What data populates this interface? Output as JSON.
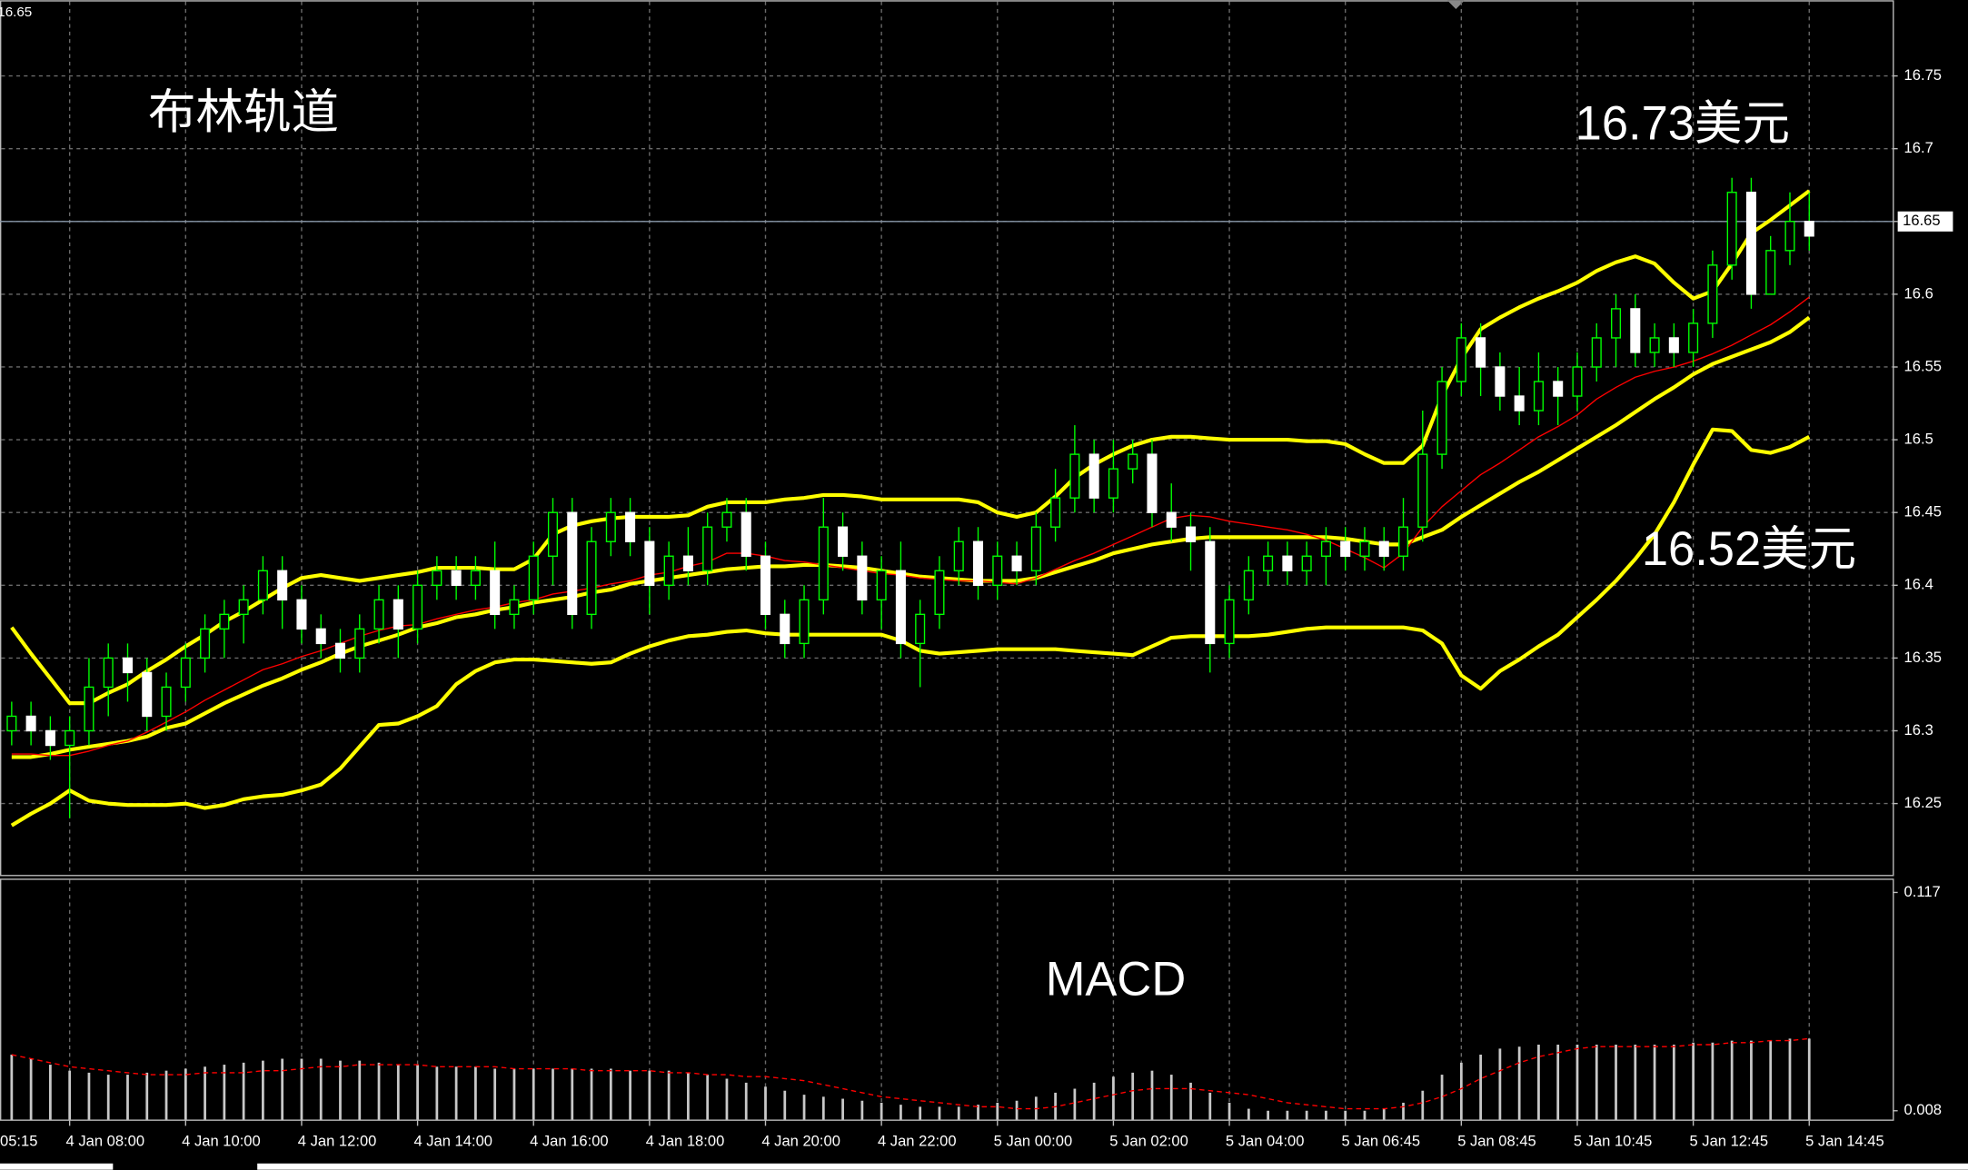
{
  "chart_data": [
    {
      "type": "candlestick",
      "title": "布林轨道",
      "last_price": 16.65,
      "annotations": [
        {
          "text": "16.73美元"
        },
        {
          "text": "16.52美元"
        }
      ],
      "ylim": [
        16.201,
        16.802
      ],
      "yticks": [
        16.25,
        16.3,
        16.35,
        16.4,
        16.45,
        16.5,
        16.55,
        16.6,
        16.65,
        16.7,
        16.75
      ],
      "grid": true,
      "up_color": "#000000",
      "down_color": "#ffffff",
      "wick_color": "#00ff00",
      "open": [
        16.3,
        16.31,
        16.3,
        16.29,
        16.3,
        16.33,
        16.35,
        16.34,
        16.31,
        16.33,
        16.35,
        16.37,
        16.38,
        16.39,
        16.41,
        16.39,
        16.37,
        16.36,
        16.35,
        16.37,
        16.39,
        16.37,
        16.4,
        16.41,
        16.4,
        16.41,
        16.38,
        16.39,
        16.42,
        16.45,
        16.38,
        16.43,
        16.45,
        16.43,
        16.4,
        16.42,
        16.41,
        16.44,
        16.45,
        16.42,
        16.38,
        16.36,
        16.39,
        16.44,
        16.42,
        16.39,
        16.41,
        16.36,
        16.38,
        16.41,
        16.43,
        16.4,
        16.42,
        16.41,
        16.44,
        16.46,
        16.49,
        16.46,
        16.48,
        16.49,
        16.45,
        16.44,
        16.43,
        16.36,
        16.39,
        16.41,
        16.42,
        16.41,
        16.42,
        16.43,
        16.42,
        16.43,
        16.42,
        16.44,
        16.49,
        16.54,
        16.57,
        16.55,
        16.53,
        16.52,
        16.54,
        16.53,
        16.55,
        16.57,
        16.59,
        16.56,
        16.57,
        16.56,
        16.58,
        16.62,
        16.67,
        16.6,
        16.63,
        16.65
      ],
      "high": [
        16.32,
        16.32,
        16.31,
        16.31,
        16.35,
        16.36,
        16.36,
        16.35,
        16.34,
        16.36,
        16.38,
        16.39,
        16.4,
        16.42,
        16.42,
        16.4,
        16.38,
        16.37,
        16.38,
        16.4,
        16.4,
        16.41,
        16.42,
        16.42,
        16.42,
        16.43,
        16.4,
        16.43,
        16.46,
        16.46,
        16.44,
        16.46,
        16.46,
        16.44,
        16.43,
        16.44,
        16.45,
        16.46,
        16.46,
        16.43,
        16.39,
        16.4,
        16.46,
        16.45,
        16.43,
        16.42,
        16.43,
        16.39,
        16.42,
        16.44,
        16.44,
        16.43,
        16.43,
        16.45,
        16.48,
        16.51,
        16.5,
        16.5,
        16.5,
        16.5,
        16.47,
        16.45,
        16.44,
        16.4,
        16.42,
        16.43,
        16.43,
        16.43,
        16.44,
        16.44,
        16.44,
        16.44,
        16.46,
        16.52,
        16.55,
        16.58,
        16.58,
        16.56,
        16.55,
        16.56,
        16.55,
        16.56,
        16.58,
        16.6,
        16.6,
        16.58,
        16.58,
        16.59,
        16.63,
        16.68,
        16.68,
        16.64,
        16.67,
        16.67
      ],
      "low": [
        16.29,
        16.29,
        16.28,
        16.24,
        16.29,
        16.31,
        16.32,
        16.3,
        16.3,
        16.32,
        16.34,
        16.35,
        16.36,
        16.38,
        16.37,
        16.36,
        16.35,
        16.34,
        16.34,
        16.36,
        16.35,
        16.36,
        16.39,
        16.39,
        16.39,
        16.37,
        16.37,
        16.38,
        16.4,
        16.37,
        16.37,
        16.42,
        16.42,
        16.38,
        16.39,
        16.4,
        16.4,
        16.43,
        16.41,
        16.37,
        16.35,
        16.35,
        16.38,
        16.41,
        16.38,
        16.37,
        16.35,
        16.33,
        16.37,
        16.4,
        16.39,
        16.39,
        16.4,
        16.4,
        16.43,
        16.45,
        16.45,
        16.45,
        16.47,
        16.44,
        16.43,
        16.41,
        16.34,
        16.35,
        16.38,
        16.4,
        16.4,
        16.4,
        16.4,
        16.41,
        16.41,
        16.41,
        16.41,
        16.43,
        16.48,
        16.53,
        16.53,
        16.52,
        16.51,
        16.51,
        16.51,
        16.52,
        16.54,
        16.55,
        16.55,
        16.55,
        16.55,
        16.55,
        16.57,
        16.61,
        16.59,
        16.6,
        16.62,
        16.63
      ],
      "close": [
        16.31,
        16.3,
        16.29,
        16.3,
        16.33,
        16.35,
        16.34,
        16.31,
        16.33,
        16.35,
        16.37,
        16.38,
        16.39,
        16.41,
        16.39,
        16.37,
        16.36,
        16.35,
        16.37,
        16.39,
        16.37,
        16.4,
        16.41,
        16.4,
        16.41,
        16.38,
        16.39,
        16.42,
        16.45,
        16.38,
        16.43,
        16.45,
        16.43,
        16.4,
        16.42,
        16.41,
        16.44,
        16.45,
        16.42,
        16.38,
        16.36,
        16.39,
        16.44,
        16.42,
        16.39,
        16.41,
        16.36,
        16.38,
        16.41,
        16.43,
        16.4,
        16.42,
        16.41,
        16.44,
        16.46,
        16.49,
        16.46,
        16.48,
        16.49,
        16.45,
        16.44,
        16.43,
        16.36,
        16.39,
        16.41,
        16.42,
        16.41,
        16.42,
        16.43,
        16.42,
        16.43,
        16.42,
        16.44,
        16.49,
        16.54,
        16.57,
        16.55,
        16.53,
        16.52,
        16.54,
        16.53,
        16.55,
        16.57,
        16.59,
        16.56,
        16.57,
        16.56,
        16.58,
        16.62,
        16.67,
        16.6,
        16.63,
        16.65,
        16.64
      ],
      "series": [
        {
          "color": "#ffff00",
          "width": 3,
          "values": [
            16.371,
            16.353,
            16.336,
            16.319,
            16.319,
            16.326,
            16.332,
            16.341,
            16.349,
            16.358,
            16.366,
            16.375,
            16.382,
            16.39,
            16.398,
            16.405,
            16.407,
            16.405,
            16.403,
            16.405,
            16.407,
            16.409,
            16.412,
            16.412,
            16.412,
            16.411,
            16.411,
            16.418,
            16.435,
            16.441,
            16.444,
            16.446,
            16.447,
            16.447,
            16.447,
            16.448,
            16.454,
            16.457,
            16.457,
            16.457,
            16.459,
            16.46,
            16.462,
            16.462,
            16.461,
            16.459,
            16.459,
            16.459,
            16.459,
            16.459,
            16.457,
            16.45,
            16.447,
            16.45,
            16.461,
            16.474,
            16.483,
            16.49,
            16.496,
            16.5,
            16.502,
            16.502,
            16.501,
            16.5,
            16.5,
            16.5,
            16.5,
            16.499,
            16.499,
            16.497,
            16.49,
            16.484,
            16.484,
            16.496,
            16.53,
            16.556,
            16.576,
            16.584,
            16.591,
            16.597,
            16.602,
            16.608,
            16.616,
            16.622,
            16.626,
            16.621,
            16.608,
            16.597,
            16.602,
            16.621,
            16.642,
            16.651,
            16.661,
            16.671
          ]
        },
        {
          "color": "#ffff00",
          "width": 3,
          "values": [
            16.282,
            16.282,
            16.284,
            16.287,
            16.289,
            16.291,
            16.293,
            16.296,
            16.302,
            16.305,
            16.312,
            16.319,
            16.325,
            16.331,
            16.336,
            16.342,
            16.347,
            16.353,
            16.358,
            16.362,
            16.366,
            16.371,
            16.374,
            16.378,
            16.38,
            16.383,
            16.385,
            16.388,
            16.39,
            16.392,
            16.395,
            16.397,
            16.401,
            16.403,
            16.405,
            16.407,
            16.409,
            16.411,
            16.412,
            16.413,
            16.413,
            16.414,
            16.414,
            16.413,
            16.412,
            16.41,
            16.408,
            16.406,
            16.405,
            16.404,
            16.403,
            16.403,
            16.403,
            16.405,
            16.409,
            16.413,
            16.417,
            16.422,
            16.425,
            16.428,
            16.43,
            16.432,
            16.433,
            16.433,
            16.433,
            16.433,
            16.433,
            16.433,
            16.433,
            16.432,
            16.43,
            16.428,
            16.428,
            16.433,
            16.438,
            16.447,
            16.455,
            16.463,
            16.471,
            16.478,
            16.486,
            16.494,
            16.502,
            16.51,
            16.519,
            16.528,
            16.536,
            16.545,
            16.552,
            16.557,
            16.562,
            16.567,
            16.574,
            16.584
          ]
        },
        {
          "color": "#ffff00",
          "width": 3,
          "values": [
            16.235,
            16.243,
            16.25,
            16.259,
            16.252,
            16.25,
            16.249,
            16.249,
            16.249,
            16.25,
            16.247,
            16.249,
            16.253,
            16.255,
            16.256,
            16.259,
            16.263,
            16.274,
            16.289,
            16.304,
            16.305,
            16.31,
            16.317,
            16.332,
            16.341,
            16.347,
            16.349,
            16.349,
            16.348,
            16.347,
            16.346,
            16.347,
            16.353,
            16.358,
            16.362,
            16.365,
            16.366,
            16.368,
            16.369,
            16.367,
            16.366,
            16.366,
            16.366,
            16.366,
            16.366,
            16.366,
            16.362,
            16.355,
            16.353,
            16.354,
            16.355,
            16.356,
            16.356,
            16.356,
            16.356,
            16.355,
            16.354,
            16.353,
            16.352,
            16.358,
            16.364,
            16.365,
            16.365,
            16.365,
            16.365,
            16.366,
            16.368,
            16.37,
            16.371,
            16.371,
            16.371,
            16.371,
            16.371,
            16.369,
            16.36,
            16.338,
            16.329,
            16.341,
            16.349,
            16.358,
            16.366,
            16.378,
            16.39,
            16.403,
            16.418,
            16.435,
            16.457,
            16.483,
            16.507,
            16.506,
            16.493,
            16.491,
            16.495,
            16.502
          ]
        },
        {
          "color": "#ff0000",
          "width": 1,
          "values": [
            16.284,
            16.284,
            16.283,
            16.283,
            16.286,
            16.29,
            16.293,
            16.299,
            16.306,
            16.313,
            16.321,
            16.328,
            16.335,
            16.342,
            16.346,
            16.351,
            16.355,
            16.36,
            16.365,
            16.369,
            16.372,
            16.373,
            16.377,
            16.38,
            16.383,
            16.385,
            16.388,
            16.39,
            16.394,
            16.396,
            16.398,
            16.401,
            16.403,
            16.407,
            16.409,
            16.413,
            16.416,
            16.422,
            16.422,
            16.42,
            16.417,
            16.416,
            16.414,
            16.412,
            16.41,
            16.408,
            16.407,
            16.405,
            16.404,
            16.403,
            16.403,
            16.402,
            16.401,
            16.405,
            16.411,
            16.417,
            16.422,
            16.428,
            16.434,
            16.44,
            16.446,
            16.448,
            16.447,
            16.444,
            16.442,
            16.44,
            16.438,
            16.435,
            16.431,
            16.425,
            16.419,
            16.412,
            16.422,
            16.44,
            16.454,
            16.465,
            16.476,
            16.484,
            16.493,
            16.502,
            16.509,
            16.517,
            16.528,
            16.536,
            16.543,
            16.547,
            16.55,
            16.554,
            16.559,
            16.565,
            16.572,
            16.579,
            16.588,
            16.598
          ]
        }
      ]
    },
    {
      "type": "bar",
      "title": "MACD",
      "ylim": [
        0.0036,
        0.1239
      ],
      "yticks": [
        0.117,
        0.008
      ],
      "grid": true,
      "left_edge_label": "05:15",
      "categories": [
        null,
        null,
        null,
        "4 Jan 08:00",
        null,
        null,
        null,
        null,
        null,
        "4 Jan 10:00",
        null,
        null,
        null,
        null,
        null,
        "4 Jan 12:00",
        null,
        null,
        null,
        null,
        null,
        "4 Jan 14:00",
        null,
        null,
        null,
        null,
        null,
        "4 Jan 16:00",
        null,
        null,
        null,
        null,
        null,
        "4 Jan 18:00",
        null,
        null,
        null,
        null,
        null,
        "4 Jan 20:00",
        null,
        null,
        null,
        null,
        null,
        "4 Jan 22:00",
        null,
        null,
        null,
        null,
        null,
        "5 Jan 00:00",
        null,
        null,
        null,
        null,
        null,
        "5 Jan 02:00",
        null,
        null,
        null,
        null,
        null,
        "5 Jan 04:00",
        null,
        null,
        null,
        null,
        null,
        "5 Jan 06:45",
        null,
        null,
        null,
        null,
        null,
        "5 Jan 08:45",
        null,
        null,
        null,
        null,
        null,
        "5 Jan 10:45",
        null,
        null,
        null,
        null,
        null,
        "5 Jan 12:45",
        null,
        null,
        null,
        null,
        null,
        "5 Jan 14:45"
      ],
      "series": [
        {
          "style": "histogram",
          "color": "#c8c8c8",
          "values": [
            0.036,
            0.034,
            0.031,
            0.028,
            0.027,
            0.026,
            0.026,
            0.027,
            0.028,
            0.029,
            0.03,
            0.031,
            0.032,
            0.033,
            0.034,
            0.034,
            0.034,
            0.033,
            0.033,
            0.032,
            0.031,
            0.031,
            0.03,
            0.03,
            0.03,
            0.029,
            0.029,
            0.029,
            0.029,
            0.029,
            0.029,
            0.029,
            0.028,
            0.028,
            0.028,
            0.027,
            0.026,
            0.024,
            0.022,
            0.02,
            0.018,
            0.016,
            0.015,
            0.014,
            0.013,
            0.012,
            0.011,
            0.01,
            0.01,
            0.01,
            0.011,
            0.012,
            0.013,
            0.015,
            0.017,
            0.019,
            0.022,
            0.025,
            0.027,
            0.028,
            0.026,
            0.022,
            0.017,
            0.012,
            0.009,
            0.008,
            0.008,
            0.008,
            0.008,
            0.008,
            0.008,
            0.009,
            0.012,
            0.018,
            0.026,
            0.032,
            0.036,
            0.039,
            0.04,
            0.041,
            0.041,
            0.041,
            0.041,
            0.041,
            0.041,
            0.041,
            0.041,
            0.042,
            0.042,
            0.043,
            0.043,
            0.043,
            0.044,
            0.044
          ]
        },
        {
          "style": "dashed-line",
          "color": "#ff0000",
          "values": [
            0.036,
            0.034,
            0.032,
            0.03,
            0.029,
            0.028,
            0.027,
            0.026,
            0.026,
            0.026,
            0.027,
            0.027,
            0.027,
            0.028,
            0.028,
            0.029,
            0.03,
            0.03,
            0.031,
            0.031,
            0.031,
            0.031,
            0.03,
            0.03,
            0.03,
            0.03,
            0.029,
            0.029,
            0.029,
            0.029,
            0.028,
            0.028,
            0.028,
            0.028,
            0.027,
            0.027,
            0.026,
            0.026,
            0.025,
            0.025,
            0.024,
            0.023,
            0.021,
            0.019,
            0.017,
            0.015,
            0.014,
            0.013,
            0.012,
            0.011,
            0.01,
            0.01,
            0.009,
            0.009,
            0.01,
            0.012,
            0.014,
            0.016,
            0.018,
            0.019,
            0.019,
            0.019,
            0.018,
            0.017,
            0.016,
            0.014,
            0.012,
            0.011,
            0.01,
            0.009,
            0.009,
            0.009,
            0.01,
            0.012,
            0.015,
            0.019,
            0.024,
            0.028,
            0.032,
            0.035,
            0.037,
            0.039,
            0.04,
            0.04,
            0.04,
            0.04,
            0.04,
            0.041,
            0.041,
            0.042,
            0.042,
            0.043,
            0.043,
            0.044
          ]
        }
      ]
    }
  ]
}
